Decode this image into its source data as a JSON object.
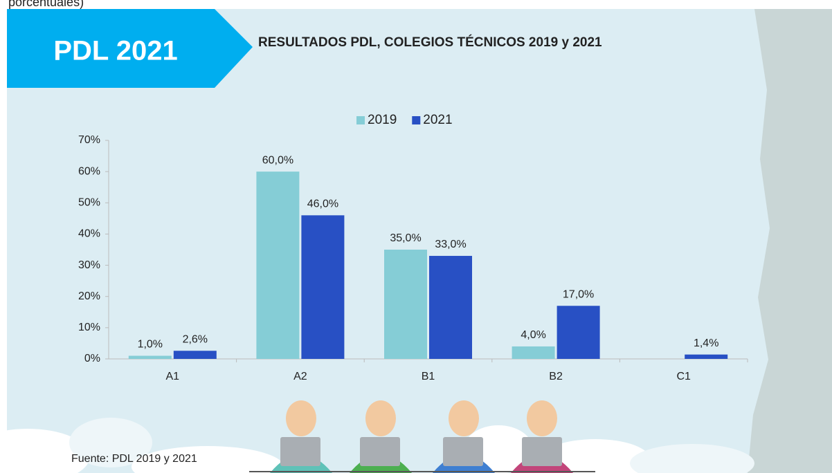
{
  "chart_data": {
    "type": "bar",
    "caption": "porcentuales)",
    "badge": "PDL 2021",
    "title": "RESULTADOS PDL, COLEGIOS TÉCNICOS 2019 y 2021",
    "source": "Fuente: PDL 2019 y 2021",
    "categories": [
      "A1",
      "A2",
      "B1",
      "B2",
      "C1"
    ],
    "series": [
      {
        "name": "2019",
        "color": "#85cdd6",
        "values": [
          1.0,
          60.0,
          35.0,
          4.0,
          null
        ],
        "value_labels": [
          "1,0%",
          "60,0%",
          "35,0%",
          "4,0%",
          null
        ]
      },
      {
        "name": "2021",
        "color": "#2850c4",
        "values": [
          2.6,
          46.0,
          33.0,
          17.0,
          1.4
        ],
        "value_labels": [
          "2,6%",
          "46,0%",
          "33,0%",
          "17,0%",
          "1,4%"
        ]
      }
    ],
    "ylim": [
      0,
      70
    ],
    "yticks": [
      {
        "value": 0,
        "label": "0%"
      },
      {
        "value": 10,
        "label": "10%"
      },
      {
        "value": 20,
        "label": "20%"
      },
      {
        "value": 30,
        "label": "30%"
      },
      {
        "value": 40,
        "label": "40%"
      },
      {
        "value": 50,
        "label": "50%"
      },
      {
        "value": 60,
        "label": "60%"
      },
      {
        "value": 70,
        "label": "70%"
      }
    ],
    "legend": "top",
    "grid": false
  }
}
